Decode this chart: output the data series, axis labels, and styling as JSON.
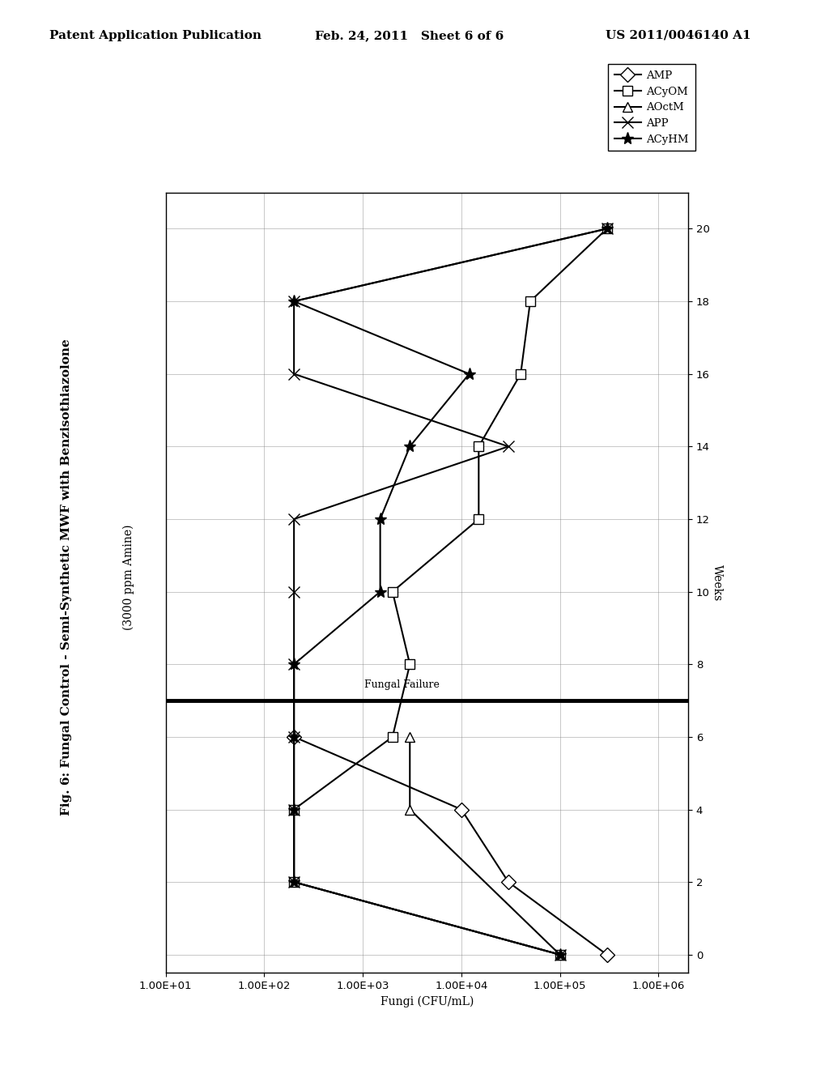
{
  "title_line1": "Fig. 6: Fungal Control - Semi-Synthetic MWF with Benzisothiazolone",
  "title_line2": "(3000 ppm Amine)",
  "xlabel_rotated": "Weeks",
  "ylabel_rotated": "Fungi (CFU/mL)",
  "background_color": "#ffffff",
  "header_text": "Patent Application Publication",
  "header_date": "Feb. 24, 2011   Sheet 6 of 6",
  "header_patent": "US 2011/0046140 A1",
  "series": {
    "AMP": {
      "weeks": [
        0,
        2,
        4,
        6
      ],
      "fungi": [
        300000.0,
        30000.0,
        10000.0,
        200
      ],
      "marker": "D",
      "mfc": "white",
      "mec": "black",
      "ms": 9
    },
    "ACyOM": {
      "weeks": [
        0,
        2,
        4,
        6,
        8,
        10,
        12,
        14,
        16,
        18,
        20
      ],
      "fungi": [
        100000.0,
        200,
        200,
        2000,
        3000,
        2000,
        15000.0,
        15000.0,
        40000.0,
        50000.0,
        300000.0
      ],
      "marker": "s",
      "mfc": "white",
      "mec": "black",
      "ms": 9
    },
    "AOctM": {
      "weeks": [
        0,
        4,
        6
      ],
      "fungi": [
        100000.0,
        3000,
        3000
      ],
      "marker": "^",
      "mfc": "white",
      "mec": "black",
      "ms": 9
    },
    "APP": {
      "weeks": [
        0,
        2,
        4,
        6,
        8,
        10,
        12,
        14,
        16,
        18,
        20
      ],
      "fungi": [
        100000.0,
        200,
        200,
        200,
        200,
        200,
        200,
        30000.0,
        200,
        200,
        300000.0
      ],
      "marker": "x",
      "mfc": "black",
      "mec": "black",
      "ms": 10
    },
    "ACyHM": {
      "weeks": [
        0,
        2,
        4,
        6,
        8,
        10,
        12,
        14,
        16,
        18,
        20
      ],
      "fungi": [
        100000.0,
        200,
        200,
        200,
        200,
        1500,
        1500,
        3000,
        12000.0,
        200,
        300000.0
      ],
      "marker": "*",
      "mfc": "black",
      "mec": "black",
      "ms": 11
    }
  },
  "fungal_failure_week": 7.0,
  "fungal_failure_label": "Fungal Failure",
  "week_ticks": [
    0,
    2,
    4,
    6,
    8,
    10,
    12,
    14,
    16,
    18,
    20
  ],
  "fungi_ticks": [
    10,
    100,
    1000,
    10000,
    100000,
    1000000
  ],
  "fungi_tick_labels": [
    "1.00E+01",
    "1.00E+02",
    "1.00E+03",
    "1.00E+04",
    "1.00E+05",
    "1.00E+06"
  ],
  "legend_entries": [
    "AMP",
    "ACyOM",
    "AOctM",
    "APP",
    "ACyHM"
  ],
  "legend_markers": [
    "D",
    "s",
    "^",
    "x",
    "*"
  ],
  "legend_mfc": [
    "white",
    "white",
    "white",
    "black",
    "black"
  ]
}
